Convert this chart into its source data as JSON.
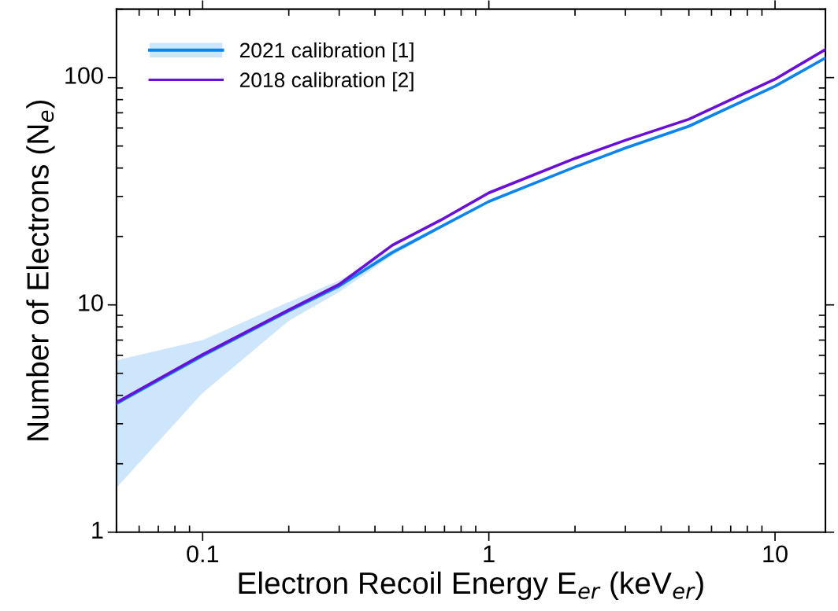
{
  "chart_data": {
    "type": "line",
    "xlabel": "Electron Recoil Energy E$_{er}$ (keV$_{er}$)",
    "ylabel": "Number of Electrons (N$_{e}$)",
    "log": "xy",
    "xlim": [
      0.05,
      15
    ],
    "ylim": [
      1,
      200
    ],
    "xticks": [
      0.1,
      1,
      10
    ],
    "yticks": [
      1,
      10,
      100
    ],
    "grid": false,
    "legend": "top left",
    "marker": "none",
    "line_style": "solid",
    "series": [
      {
        "name": "2021 calibration [1]",
        "color": "#0a84ee",
        "x": [
          0.05,
          0.1,
          0.2,
          0.3,
          0.46,
          0.7,
          1,
          2,
          3,
          5,
          10,
          15
        ],
        "values": [
          3.68,
          5.97,
          9.4,
          12.1,
          17.0,
          22.5,
          28.5,
          40.4,
          49,
          61.1,
          91.6,
          122
        ],
        "lower": [
          1.57,
          4.1,
          8.5,
          11.4,
          16.5,
          22.2,
          28.3,
          40.2,
          48.8,
          60.9,
          91.3,
          121.6
        ],
        "upper": [
          5.7,
          7.0,
          10.3,
          12.8,
          17.5,
          22.8,
          28.7,
          40.6,
          49.2,
          61.3,
          91.9,
          122.4
        ]
      },
      {
        "name": "2018 calibration [2]",
        "color": "#6a0fd8",
        "x": [
          0.05,
          0.1,
          0.2,
          0.3,
          0.46,
          0.7,
          1,
          2,
          3,
          5,
          10,
          15
        ],
        "values": [
          3.72,
          6.05,
          9.5,
          12.3,
          18.3,
          24.1,
          31.1,
          44.1,
          53,
          65.6,
          98.4,
          133
        ]
      }
    ]
  }
}
